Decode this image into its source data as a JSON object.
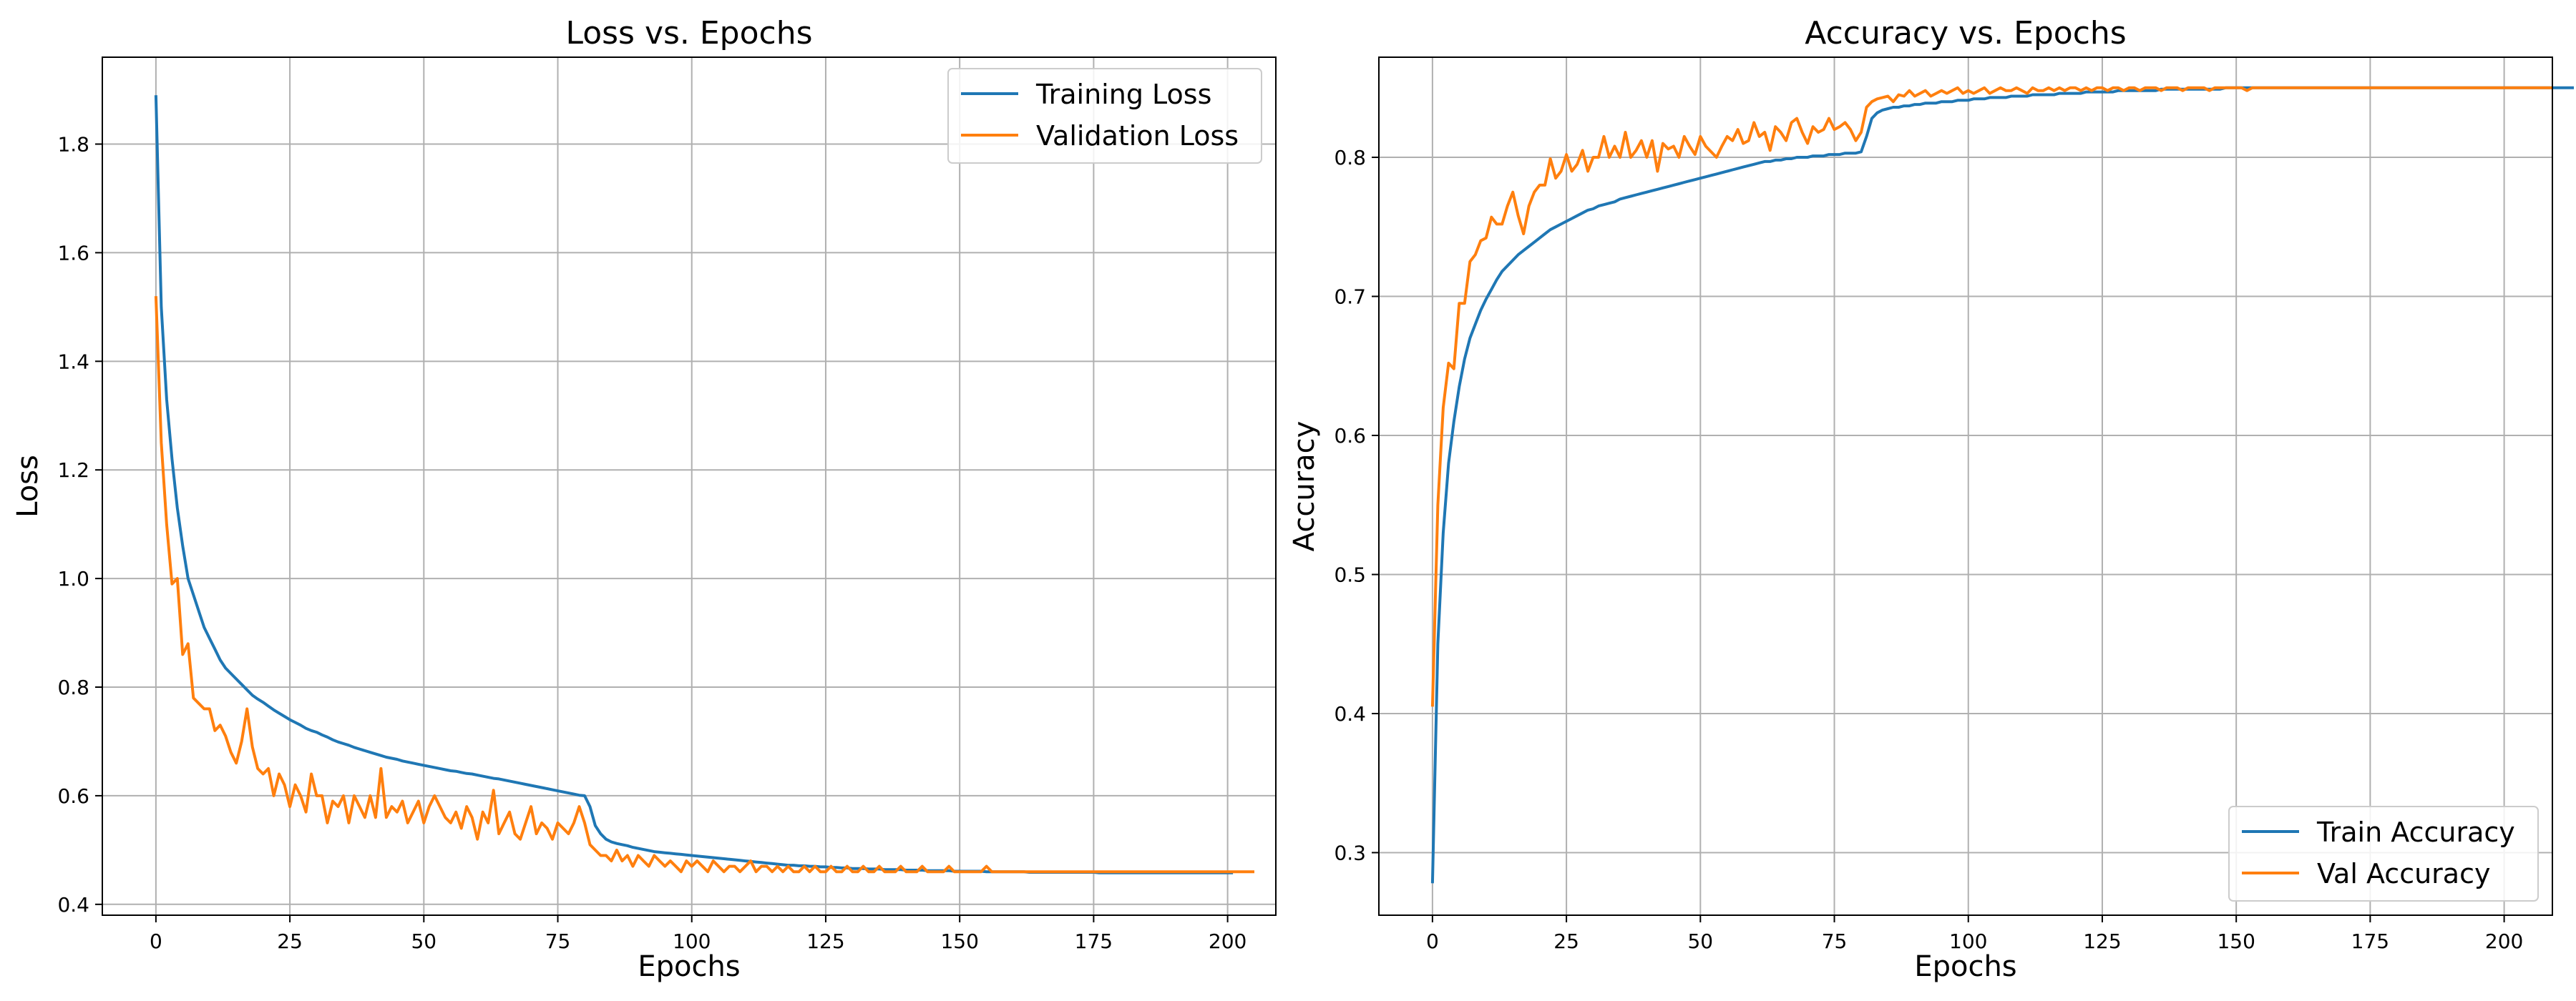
{
  "chart_data": [
    {
      "type": "line",
      "title": "Loss vs. Epochs",
      "xlabel": "Epochs",
      "ylabel": "Loss",
      "xlim": [
        -10,
        209
      ],
      "ylim": [
        0.38,
        1.96
      ],
      "xticks": [
        0,
        25,
        50,
        75,
        100,
        125,
        150,
        175,
        200
      ],
      "yticks": [
        0.4,
        0.6,
        0.8,
        1.0,
        1.2,
        1.4,
        1.6,
        1.8
      ],
      "ytick_format": 1,
      "grid": true,
      "legend_position": "top-right",
      "x_start": 0,
      "series": [
        {
          "name": "Training Loss",
          "color": "#1f77b4",
          "values": [
            1.89,
            1.5,
            1.33,
            1.22,
            1.13,
            1.06,
            1.0,
            0.97,
            0.94,
            0.91,
            0.89,
            0.87,
            0.85,
            0.835,
            0.825,
            0.815,
            0.805,
            0.795,
            0.785,
            0.778,
            0.772,
            0.765,
            0.758,
            0.752,
            0.746,
            0.74,
            0.735,
            0.73,
            0.724,
            0.72,
            0.717,
            0.712,
            0.708,
            0.703,
            0.699,
            0.696,
            0.693,
            0.689,
            0.686,
            0.683,
            0.68,
            0.677,
            0.674,
            0.671,
            0.669,
            0.667,
            0.664,
            0.662,
            0.66,
            0.658,
            0.656,
            0.654,
            0.652,
            0.65,
            0.648,
            0.646,
            0.645,
            0.643,
            0.641,
            0.64,
            0.638,
            0.636,
            0.634,
            0.632,
            0.631,
            0.629,
            0.627,
            0.625,
            0.623,
            0.621,
            0.619,
            0.617,
            0.615,
            0.613,
            0.611,
            0.609,
            0.607,
            0.605,
            0.603,
            0.601,
            0.6,
            0.58,
            0.545,
            0.53,
            0.52,
            0.515,
            0.512,
            0.51,
            0.508,
            0.505,
            0.503,
            0.501,
            0.499,
            0.497,
            0.496,
            0.495,
            0.494,
            0.493,
            0.492,
            0.491,
            0.49,
            0.489,
            0.488,
            0.487,
            0.486,
            0.485,
            0.484,
            0.483,
            0.482,
            0.481,
            0.48,
            0.479,
            0.478,
            0.477,
            0.476,
            0.475,
            0.474,
            0.473,
            0.472,
            0.472,
            0.471,
            0.471,
            0.47,
            0.47,
            0.469,
            0.469,
            0.468,
            0.468,
            0.467,
            0.467,
            0.466,
            0.466,
            0.466,
            0.465,
            0.465,
            0.465,
            0.464,
            0.464,
            0.464,
            0.464,
            0.463,
            0.463,
            0.463,
            0.463,
            0.462,
            0.462,
            0.462,
            0.462,
            0.462,
            0.461,
            0.461,
            0.461,
            0.461,
            0.461,
            0.461,
            0.46,
            0.46,
            0.46,
            0.46,
            0.46,
            0.46,
            0.46,
            0.46,
            0.459,
            0.459,
            0.459,
            0.459,
            0.459,
            0.459,
            0.459,
            0.459,
            0.459,
            0.459,
            0.459,
            0.459,
            0.459,
            0.458,
            0.458,
            0.458,
            0.458,
            0.458,
            0.458,
            0.458,
            0.458,
            0.458,
            0.458,
            0.458,
            0.458,
            0.458,
            0.458,
            0.458,
            0.458,
            0.458,
            0.458,
            0.458,
            0.458,
            0.458,
            0.458,
            0.458,
            0.458,
            0.458,
            0.458
          ]
        },
        {
          "name": "Validation Loss",
          "color": "#ff7f0e",
          "values": [
            1.52,
            1.25,
            1.1,
            0.99,
            1.0,
            0.86,
            0.88,
            0.78,
            0.77,
            0.76,
            0.76,
            0.72,
            0.73,
            0.71,
            0.68,
            0.66,
            0.7,
            0.76,
            0.69,
            0.65,
            0.64,
            0.65,
            0.6,
            0.64,
            0.62,
            0.58,
            0.62,
            0.6,
            0.57,
            0.64,
            0.6,
            0.6,
            0.55,
            0.59,
            0.58,
            0.6,
            0.55,
            0.6,
            0.58,
            0.56,
            0.6,
            0.56,
            0.65,
            0.56,
            0.58,
            0.57,
            0.59,
            0.55,
            0.57,
            0.59,
            0.55,
            0.58,
            0.6,
            0.58,
            0.56,
            0.55,
            0.57,
            0.54,
            0.58,
            0.56,
            0.52,
            0.57,
            0.55,
            0.61,
            0.53,
            0.55,
            0.57,
            0.53,
            0.52,
            0.55,
            0.58,
            0.53,
            0.55,
            0.54,
            0.52,
            0.55,
            0.54,
            0.53,
            0.55,
            0.58,
            0.55,
            0.51,
            0.5,
            0.49,
            0.49,
            0.48,
            0.5,
            0.48,
            0.49,
            0.47,
            0.49,
            0.48,
            0.47,
            0.49,
            0.48,
            0.47,
            0.48,
            0.47,
            0.46,
            0.48,
            0.47,
            0.48,
            0.47,
            0.46,
            0.48,
            0.47,
            0.46,
            0.47,
            0.47,
            0.46,
            0.47,
            0.48,
            0.46,
            0.47,
            0.47,
            0.46,
            0.47,
            0.46,
            0.47,
            0.46,
            0.46,
            0.47,
            0.46,
            0.47,
            0.46,
            0.46,
            0.47,
            0.46,
            0.46,
            0.47,
            0.46,
            0.46,
            0.47,
            0.46,
            0.46,
            0.47,
            0.46,
            0.46,
            0.46,
            0.47,
            0.46,
            0.46,
            0.46,
            0.47,
            0.46,
            0.46,
            0.46,
            0.46,
            0.47,
            0.46,
            0.46,
            0.46,
            0.46,
            0.46,
            0.46,
            0.47,
            0.46,
            0.46,
            0.46,
            0.46,
            0.46,
            0.46,
            0.46,
            0.46,
            0.46,
            0.46,
            0.46,
            0.46,
            0.46,
            0.46,
            0.46,
            0.46,
            0.46,
            0.46,
            0.46,
            0.46,
            0.46,
            0.46,
            0.46,
            0.46,
            0.46,
            0.46,
            0.46,
            0.46,
            0.46,
            0.46,
            0.46,
            0.46,
            0.46,
            0.46,
            0.46,
            0.46,
            0.46,
            0.46,
            0.46,
            0.46,
            0.46,
            0.46,
            0.46,
            0.46,
            0.46,
            0.46,
            0.46,
            0.46,
            0.46,
            0.46
          ]
        }
      ]
    },
    {
      "type": "line",
      "title": "Accuracy vs. Epochs",
      "xlabel": "Epochs",
      "ylabel": "Accuracy",
      "xlim": [
        -10,
        209
      ],
      "ylim": [
        0.255,
        0.872
      ],
      "xticks": [
        0,
        25,
        50,
        75,
        100,
        125,
        150,
        175,
        200
      ],
      "yticks": [
        0.3,
        0.4,
        0.5,
        0.6,
        0.7,
        0.8
      ],
      "ytick_format": 1,
      "grid": true,
      "legend_position": "bottom-right",
      "x_start": 0,
      "series": [
        {
          "name": "Train Accuracy",
          "color": "#1f77b4",
          "values": [
            0.278,
            0.45,
            0.53,
            0.58,
            0.61,
            0.635,
            0.655,
            0.67,
            0.68,
            0.69,
            0.698,
            0.705,
            0.712,
            0.718,
            0.722,
            0.726,
            0.73,
            0.733,
            0.736,
            0.739,
            0.742,
            0.745,
            0.748,
            0.75,
            0.752,
            0.754,
            0.756,
            0.758,
            0.76,
            0.762,
            0.763,
            0.765,
            0.766,
            0.767,
            0.768,
            0.77,
            0.771,
            0.772,
            0.773,
            0.774,
            0.775,
            0.776,
            0.777,
            0.778,
            0.779,
            0.78,
            0.781,
            0.782,
            0.783,
            0.784,
            0.785,
            0.786,
            0.787,
            0.788,
            0.789,
            0.79,
            0.791,
            0.792,
            0.793,
            0.794,
            0.795,
            0.796,
            0.797,
            0.797,
            0.798,
            0.798,
            0.799,
            0.799,
            0.8,
            0.8,
            0.8,
            0.801,
            0.801,
            0.801,
            0.802,
            0.802,
            0.802,
            0.803,
            0.803,
            0.803,
            0.804,
            0.815,
            0.828,
            0.832,
            0.834,
            0.835,
            0.836,
            0.836,
            0.837,
            0.837,
            0.838,
            0.838,
            0.839,
            0.839,
            0.839,
            0.84,
            0.84,
            0.84,
            0.841,
            0.841,
            0.841,
            0.842,
            0.842,
            0.842,
            0.843,
            0.843,
            0.843,
            0.843,
            0.844,
            0.844,
            0.844,
            0.844,
            0.845,
            0.845,
            0.845,
            0.845,
            0.845,
            0.846,
            0.846,
            0.846,
            0.846,
            0.846,
            0.847,
            0.847,
            0.847,
            0.847,
            0.847,
            0.847,
            0.848,
            0.848,
            0.848,
            0.848,
            0.848,
            0.848,
            0.848,
            0.848,
            0.849,
            0.849,
            0.849,
            0.849,
            0.849,
            0.849,
            0.849,
            0.849,
            0.849,
            0.849,
            0.849,
            0.849,
            0.85,
            0.85,
            0.85,
            0.85,
            0.85,
            0.85,
            0.85,
            0.85,
            0.85,
            0.85,
            0.85,
            0.85,
            0.85,
            0.85,
            0.85,
            0.85,
            0.85,
            0.85,
            0.85,
            0.85,
            0.85,
            0.85,
            0.85,
            0.85,
            0.85,
            0.85,
            0.85,
            0.85,
            0.85,
            0.85,
            0.85,
            0.85,
            0.85,
            0.85,
            0.85,
            0.85,
            0.85,
            0.85,
            0.85,
            0.85,
            0.85,
            0.85,
            0.85,
            0.85,
            0.85,
            0.85,
            0.85,
            0.85,
            0.85,
            0.85,
            0.85,
            0.85,
            0.85,
            0.85,
            0.85,
            0.85,
            0.85,
            0.85,
            0.85,
            0.85,
            0.85,
            0.85,
            0.85,
            0.85,
            0.85,
            0.85
          ]
        },
        {
          "name": "Val Accuracy",
          "color": "#ff7f0e",
          "values": [
            0.405,
            0.55,
            0.62,
            0.652,
            0.648,
            0.695,
            0.695,
            0.725,
            0.73,
            0.74,
            0.742,
            0.757,
            0.752,
            0.752,
            0.765,
            0.775,
            0.758,
            0.745,
            0.765,
            0.775,
            0.78,
            0.78,
            0.799,
            0.785,
            0.79,
            0.802,
            0.79,
            0.795,
            0.805,
            0.79,
            0.8,
            0.8,
            0.815,
            0.8,
            0.808,
            0.8,
            0.818,
            0.8,
            0.805,
            0.812,
            0.8,
            0.812,
            0.79,
            0.81,
            0.806,
            0.808,
            0.8,
            0.815,
            0.808,
            0.802,
            0.815,
            0.808,
            0.804,
            0.8,
            0.808,
            0.815,
            0.812,
            0.82,
            0.81,
            0.812,
            0.825,
            0.815,
            0.818,
            0.805,
            0.822,
            0.818,
            0.812,
            0.825,
            0.828,
            0.818,
            0.81,
            0.822,
            0.818,
            0.82,
            0.828,
            0.82,
            0.822,
            0.825,
            0.82,
            0.812,
            0.818,
            0.836,
            0.84,
            0.842,
            0.843,
            0.844,
            0.84,
            0.845,
            0.844,
            0.848,
            0.844,
            0.846,
            0.848,
            0.844,
            0.846,
            0.848,
            0.846,
            0.848,
            0.85,
            0.846,
            0.848,
            0.846,
            0.848,
            0.85,
            0.846,
            0.848,
            0.85,
            0.848,
            0.848,
            0.85,
            0.848,
            0.846,
            0.85,
            0.848,
            0.848,
            0.85,
            0.848,
            0.85,
            0.848,
            0.85,
            0.85,
            0.848,
            0.85,
            0.848,
            0.85,
            0.85,
            0.848,
            0.85,
            0.85,
            0.848,
            0.85,
            0.85,
            0.848,
            0.85,
            0.85,
            0.85,
            0.848,
            0.85,
            0.85,
            0.85,
            0.848,
            0.85,
            0.85,
            0.85,
            0.85,
            0.848,
            0.85,
            0.85,
            0.85,
            0.85,
            0.85,
            0.85,
            0.848,
            0.85,
            0.85,
            0.85,
            0.85,
            0.85,
            0.85,
            0.85,
            0.85,
            0.85,
            0.85,
            0.85,
            0.85,
            0.85,
            0.85,
            0.85,
            0.85,
            0.85,
            0.85,
            0.85,
            0.85,
            0.85,
            0.85,
            0.85,
            0.85,
            0.85,
            0.85,
            0.85,
            0.85,
            0.85,
            0.85,
            0.85,
            0.85,
            0.85,
            0.85,
            0.85,
            0.85,
            0.85,
            0.85,
            0.85,
            0.85,
            0.85,
            0.85,
            0.85,
            0.85,
            0.85,
            0.85,
            0.85,
            0.85,
            0.85,
            0.85,
            0.85,
            0.85,
            0.85,
            0.85,
            0.85,
            0.85,
            0.85
          ]
        }
      ]
    }
  ]
}
